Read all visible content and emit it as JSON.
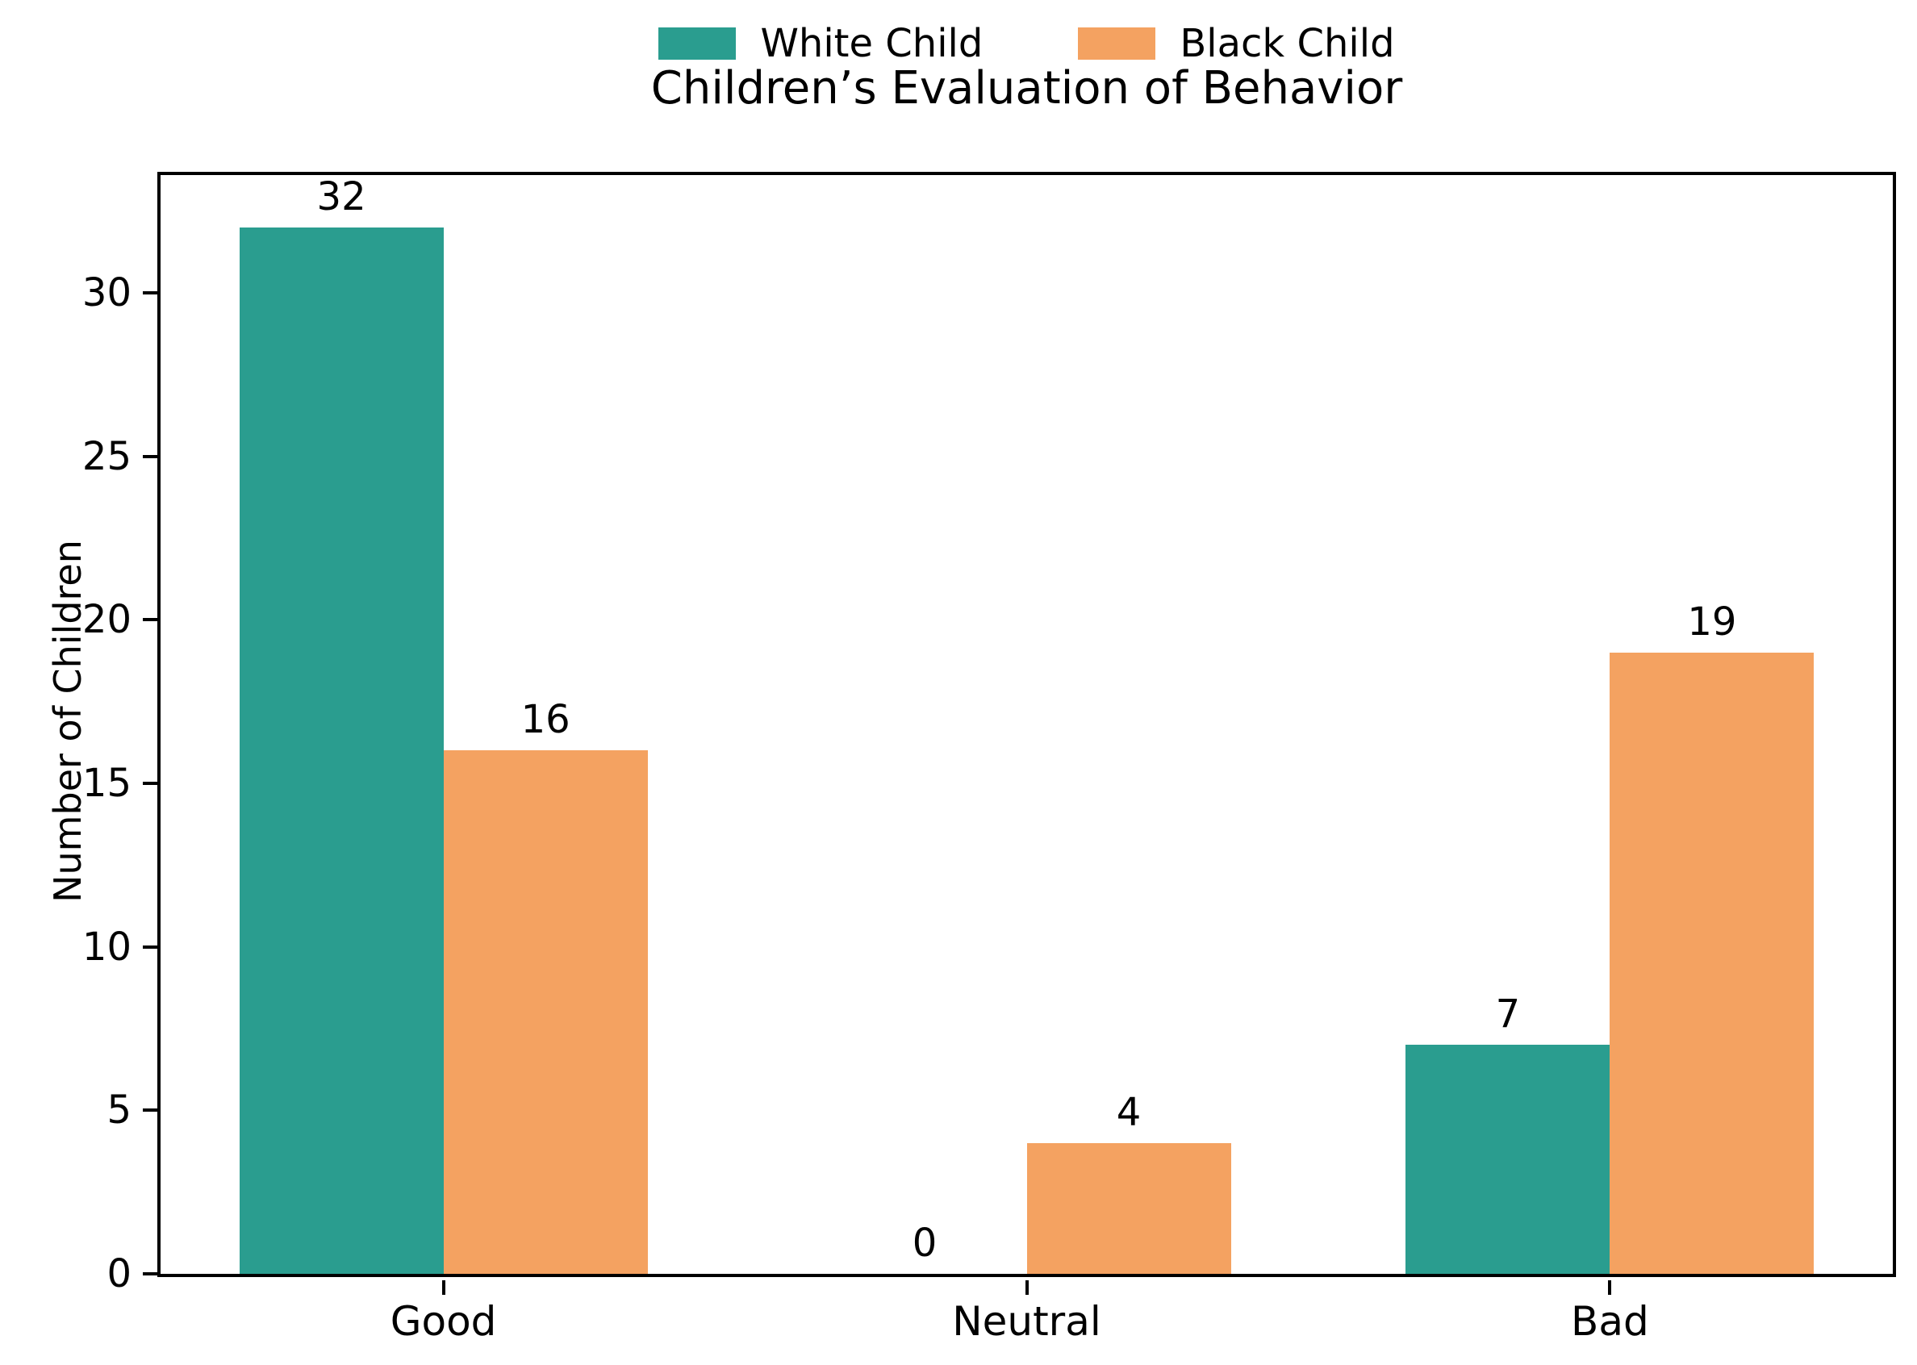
{
  "chart_data": {
    "type": "bar",
    "title": "Children’s Evaluation of Behavior",
    "ylabel": "Number of Children",
    "xlabel": "",
    "categories": [
      "Good",
      "Neutral",
      "Bad"
    ],
    "series": [
      {
        "name": "White Child",
        "color": "#2a9d8f",
        "values": [
          32,
          0,
          7
        ]
      },
      {
        "name": "Black Child",
        "color": "#f4a261",
        "values": [
          16,
          4,
          19
        ]
      }
    ],
    "bar_value_labels": [
      [
        "32",
        "0",
        "7"
      ],
      [
        "16",
        "4",
        "19"
      ]
    ],
    "yticks": [
      0,
      5,
      10,
      15,
      20,
      25,
      30
    ],
    "ylim": [
      0,
      33.6
    ],
    "bar_width_fraction": 0.35,
    "grid": false,
    "legend_position": "upper center above title",
    "axis_color": "#000000",
    "background_color": "#ffffff",
    "text_color": "#000000"
  }
}
